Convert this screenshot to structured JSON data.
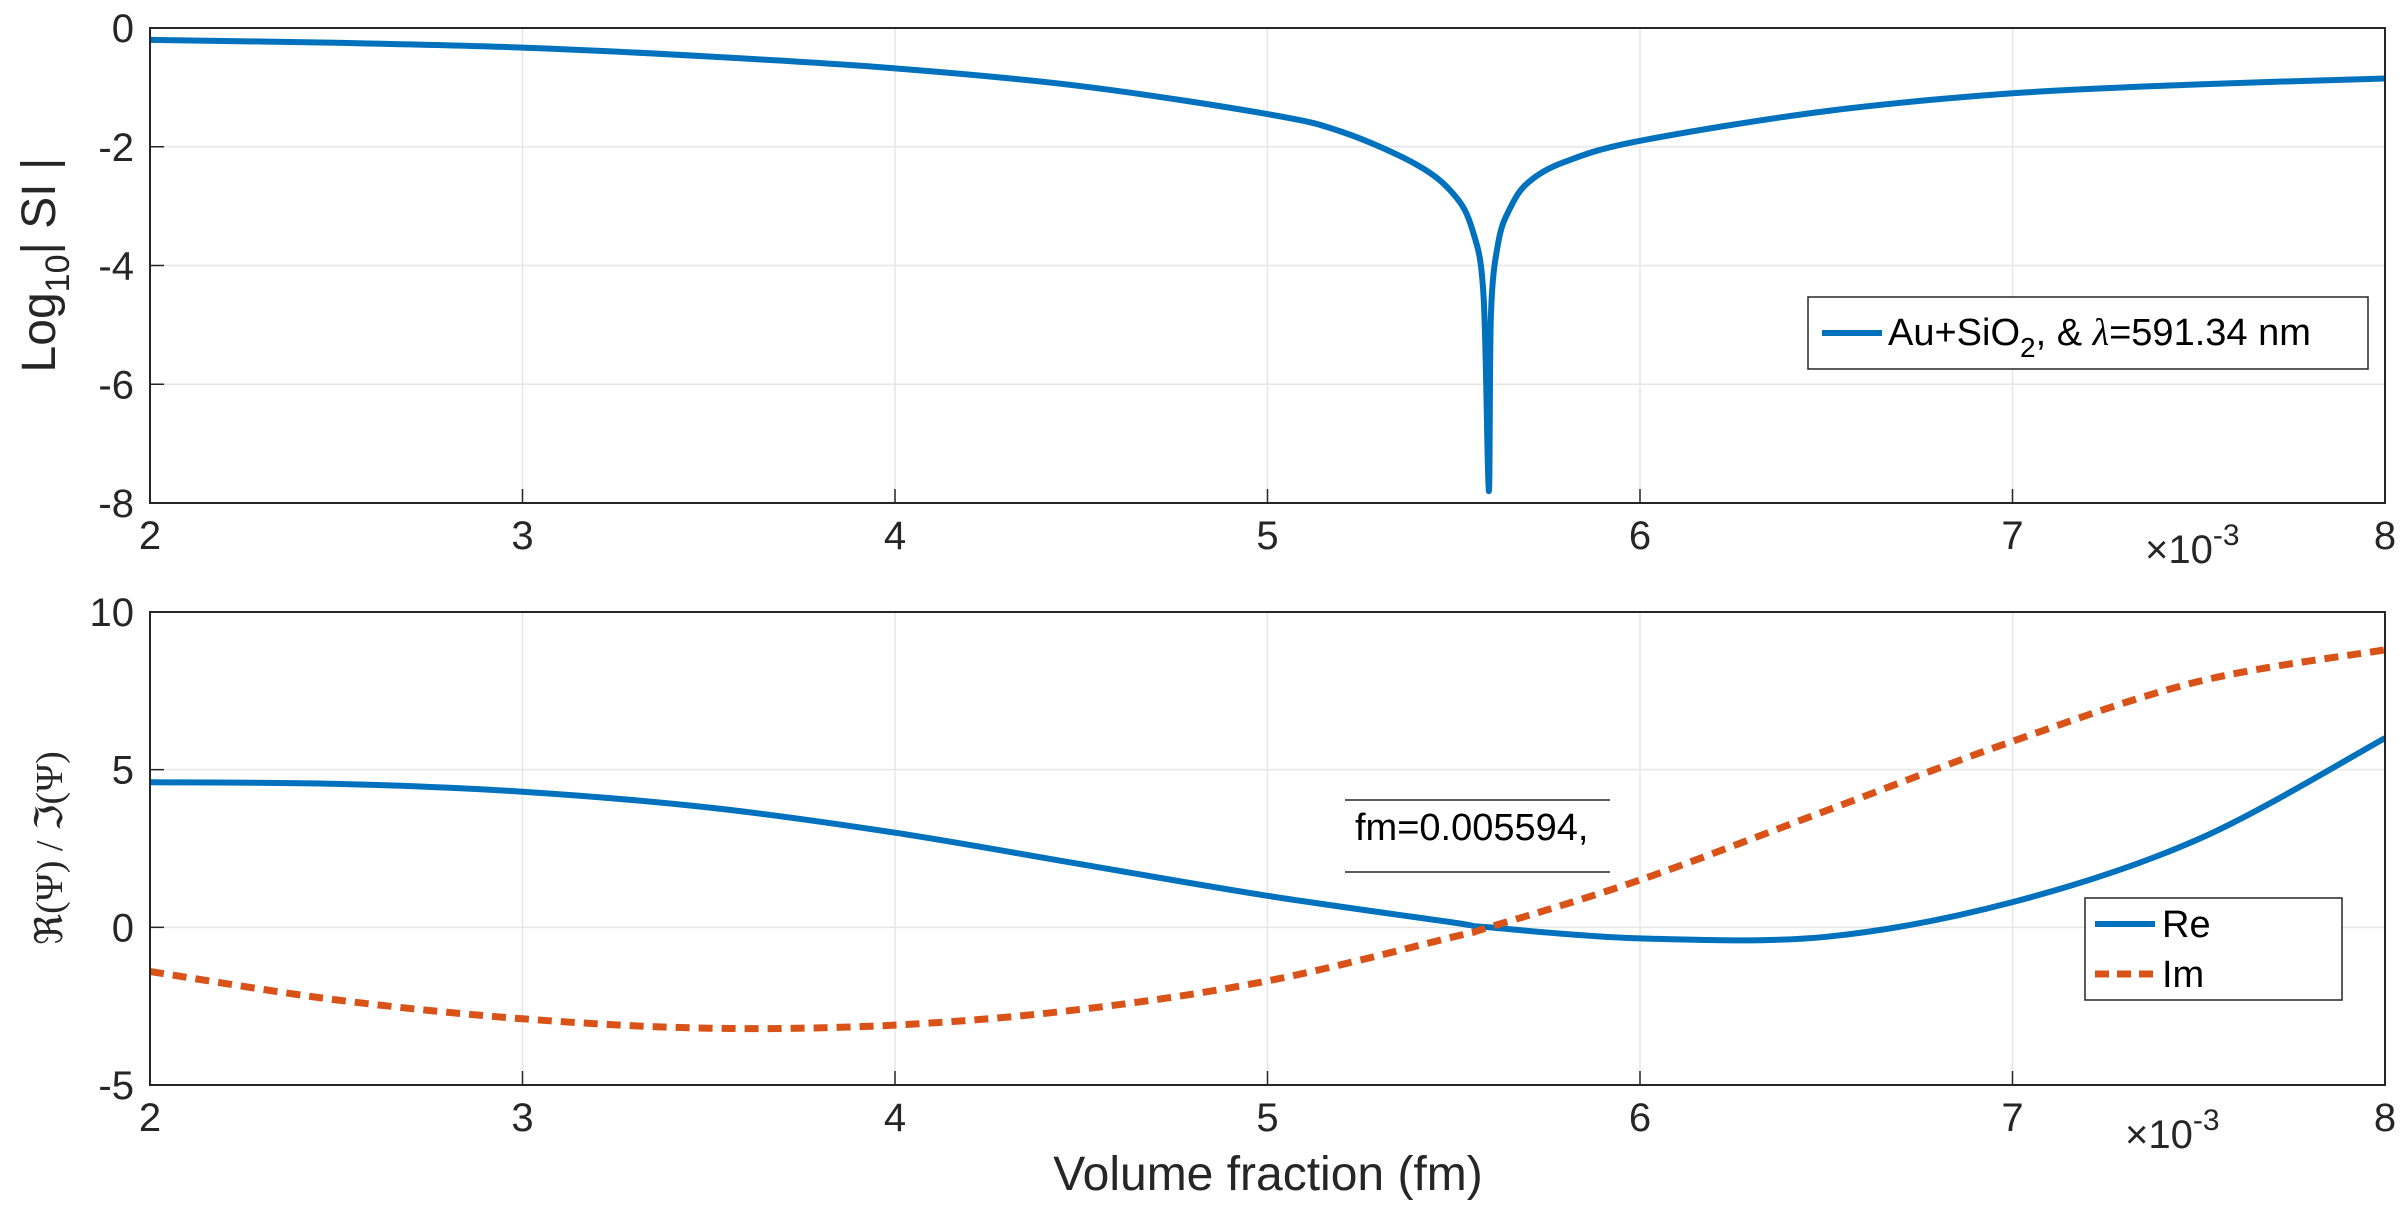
{
  "colors": {
    "blue": "#0072BD",
    "orange": "#D95319",
    "grid": "#e6e6e6",
    "axis": "#262626"
  },
  "chart_data": [
    {
      "type": "line",
      "ylabel_base": "Log",
      "ylabel_sub": "10",
      "ylabel_rest": "| SI |",
      "xlim": [
        0.002,
        0.008
      ],
      "ylim": [
        -8,
        0
      ],
      "xticks": [
        "2",
        "3",
        "4",
        "5",
        "6",
        "7",
        "8"
      ],
      "yticks": [
        "0",
        "-2",
        "-4",
        "-6",
        "-8"
      ],
      "x_exponent_base": "×10",
      "x_exponent_power": "-3",
      "grid": true,
      "legend_position": "right",
      "series": [
        {
          "name_parts": [
            "Au+SiO",
            "2",
            ", & ",
            "λ",
            "=591.34 nm"
          ],
          "style": "solid",
          "x": [
            0.002,
            0.0025,
            0.003,
            0.0035,
            0.004,
            0.0045,
            0.005,
            0.0052,
            0.0054,
            0.0055,
            0.00555,
            0.00558,
            0.005594,
            0.0056,
            0.00562,
            0.00565,
            0.0057,
            0.0058,
            0.006,
            0.0065,
            0.007,
            0.0075,
            0.008
          ],
          "y": [
            -0.2,
            -0.25,
            -0.33,
            -0.48,
            -0.68,
            -0.98,
            -1.45,
            -1.75,
            -2.3,
            -2.8,
            -3.4,
            -4.5,
            -7.8,
            -4.8,
            -3.6,
            -3.05,
            -2.6,
            -2.25,
            -1.9,
            -1.4,
            -1.1,
            -0.95,
            -0.85
          ]
        }
      ]
    },
    {
      "type": "line",
      "ylabel": "ℜ(Ψ) / ℑ(Ψ)",
      "xlabel": "Volume fraction (fm)",
      "xlim": [
        0.002,
        0.008
      ],
      "ylim": [
        -5,
        10
      ],
      "xticks": [
        "2",
        "3",
        "4",
        "5",
        "6",
        "7",
        "8"
      ],
      "yticks": [
        "10",
        "5",
        "0",
        "-5"
      ],
      "x_exponent_base": "×10",
      "x_exponent_power": "-3",
      "grid": true,
      "legend_position": "right",
      "annotation": "fm=0.005594,",
      "series": [
        {
          "name": "Re",
          "style": "solid",
          "x": [
            0.002,
            0.0025,
            0.003,
            0.0035,
            0.004,
            0.0045,
            0.005,
            0.0055,
            0.005594,
            0.006,
            0.0065,
            0.007,
            0.0075,
            0.008
          ],
          "y": [
            4.6,
            4.55,
            4.3,
            3.8,
            3.0,
            2.0,
            1.0,
            0.15,
            0.0,
            -0.35,
            -0.3,
            0.8,
            2.8,
            6.0
          ]
        },
        {
          "name": "Im",
          "style": "dashed",
          "x": [
            0.002,
            0.0025,
            0.003,
            0.0035,
            0.004,
            0.0045,
            0.005,
            0.0055,
            0.005594,
            0.006,
            0.0065,
            0.007,
            0.0075,
            0.008
          ],
          "y": [
            -1.4,
            -2.3,
            -2.9,
            -3.2,
            -3.1,
            -2.6,
            -1.7,
            -0.3,
            0.0,
            1.5,
            3.7,
            5.9,
            7.8,
            8.8
          ]
        }
      ]
    }
  ]
}
